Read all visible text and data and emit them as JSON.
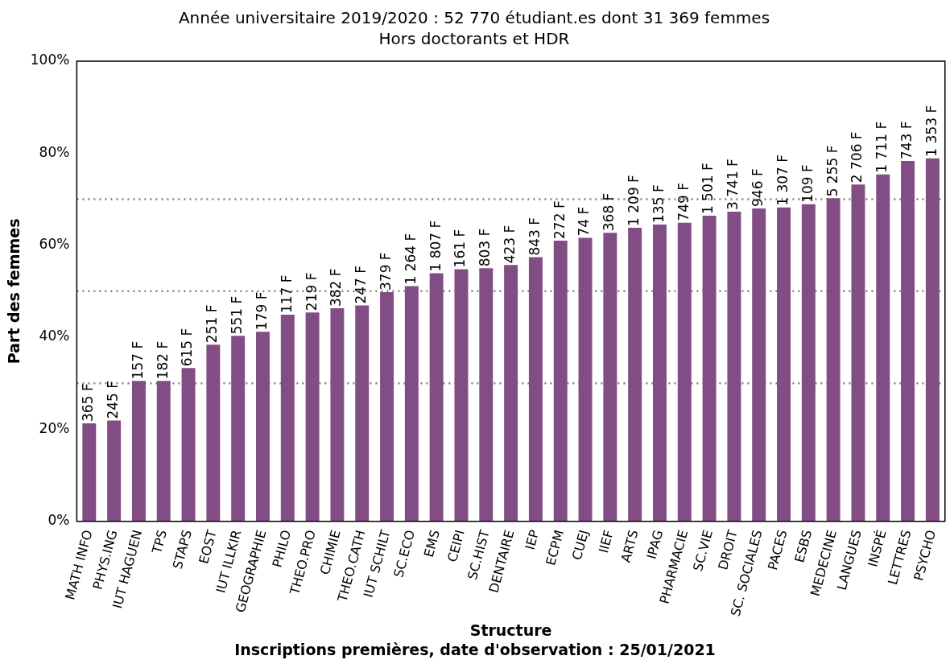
{
  "chart_data": {
    "type": "bar",
    "title": "Année universitaire 2019/2020 : 52 770 étudiant.es dont 31 369 femmes",
    "subtitle": "Hors doctorants et HDR",
    "xlabel": "Structure",
    "ylabel": "Part des femmes",
    "annotations": [
      "Inscriptions premières, date d'observation : 25/01/2021",
      {
        "text": "365 F",
        "x": "MATH INFO",
        "y": 21.3
      },
      {
        "text": "245 F",
        "x": "PHYS.ING",
        "y": 21.9
      },
      {
        "text": "157 F",
        "x": "IUT HAGUEN",
        "y": 30.5
      },
      {
        "text": "182 F",
        "x": "TPS",
        "y": 30.5
      },
      {
        "text": "615 F",
        "x": "STAPS",
        "y": 33.3
      },
      {
        "text": "251 F",
        "x": "EOST",
        "y": 38.4
      },
      {
        "text": "551 F",
        "x": "IUT ILLKIR",
        "y": 40.3
      },
      {
        "text": "179 F",
        "x": "GEOGRAPHIE",
        "y": 41.2
      },
      {
        "text": "117 F",
        "x": "PHILO",
        "y": 44.9
      },
      {
        "text": "219 F",
        "x": "THEO.PRO",
        "y": 45.4
      },
      {
        "text": "382 F",
        "x": "CHIMIE",
        "y": 46.3
      },
      {
        "text": "247 F",
        "x": "THEO.CATH",
        "y": 46.9
      },
      {
        "text": "379 F",
        "x": "IUT SCHILT",
        "y": 49.8
      },
      {
        "text": "1 264 F",
        "x": "SC.ECO",
        "y": 51.1
      },
      {
        "text": "1 807 F",
        "x": "EMS",
        "y": 53.9
      },
      {
        "text": "161 F",
        "x": "CEIPI",
        "y": 54.8
      },
      {
        "text": "803 F",
        "x": "SC.HIST",
        "y": 55.0
      },
      {
        "text": "423 F",
        "x": "DENTAIRE",
        "y": 55.7
      },
      {
        "text": "843 F",
        "x": "IEP",
        "y": 57.4
      },
      {
        "text": "272 F",
        "x": "ECPM",
        "y": 61.0
      },
      {
        "text": "74 F",
        "x": "CUEJ",
        "y": 61.6
      },
      {
        "text": "368 F",
        "x": "IIEF",
        "y": 62.7
      },
      {
        "text": "1 209 F",
        "x": "ARTS",
        "y": 63.8
      },
      {
        "text": "135 F",
        "x": "IPAG",
        "y": 64.5
      },
      {
        "text": "749 F",
        "x": "PHARMACIE",
        "y": 64.9
      },
      {
        "text": "1 501 F",
        "x": "SC.VIE",
        "y": 66.4
      },
      {
        "text": "3 741 F",
        "x": "DROIT",
        "y": 67.3
      },
      {
        "text": "946 F",
        "x": "SC. SOCIALES",
        "y": 68.0
      },
      {
        "text": "1 307 F",
        "x": "PACES",
        "y": 68.2
      },
      {
        "text": "109 F",
        "x": "ESBS",
        "y": 68.9
      },
      {
        "text": "5 255 F",
        "x": "MEDECINE",
        "y": 70.2
      },
      {
        "text": "2 706 F",
        "x": "LANGUES",
        "y": 73.2
      },
      {
        "text": "1 711 F",
        "x": "INSPÉ",
        "y": 75.4
      },
      {
        "text": "743 F",
        "x": "LETTRES",
        "y": 78.3
      },
      {
        "text": "1 353 F",
        "x": "PSYCHO",
        "y": 78.9
      }
    ],
    "categories": [
      "MATH INFO",
      "PHYS.ING",
      "IUT HAGUEN",
      "TPS",
      "STAPS",
      "EOST",
      "IUT ILLKIR",
      "GEOGRAPHIE",
      "PHILO",
      "THEO.PRO",
      "CHIMIE",
      "THEO.CATH",
      "IUT SCHILT",
      "SC.ECO",
      "EMS",
      "CEIPI",
      "SC.HIST",
      "DENTAIRE",
      "IEP",
      "ECPM",
      "CUEJ",
      "IIEF",
      "ARTS",
      "IPAG",
      "PHARMACIE",
      "SC.VIE",
      "DROIT",
      "SC. SOCIALES",
      "PACES",
      "ESBS",
      "MEDECINE",
      "LANGUES",
      "INSPÉ",
      "LETTRES",
      "PSYCHO"
    ],
    "values": [
      21.3,
      21.9,
      30.5,
      30.5,
      33.3,
      38.4,
      40.3,
      41.2,
      44.9,
      45.4,
      46.3,
      46.9,
      49.8,
      51.1,
      53.9,
      54.8,
      55.0,
      55.7,
      57.4,
      61.0,
      61.6,
      62.7,
      63.8,
      64.5,
      64.9,
      66.4,
      67.3,
      68.0,
      68.2,
      68.9,
      70.2,
      73.2,
      75.4,
      78.3,
      78.9
    ],
    "color": "#824d84",
    "ylim": [
      0,
      100
    ],
    "yticks": [
      {
        "value": 0,
        "label": "0%"
      },
      {
        "value": 20,
        "label": "20%"
      },
      {
        "value": 40,
        "label": "40%"
      },
      {
        "value": 60,
        "label": "60%"
      },
      {
        "value": 80,
        "label": "80%"
      },
      {
        "value": 100,
        "label": "100%"
      }
    ],
    "ref_lines": [
      {
        "axis": "y",
        "value": 30,
        "line_style": "dotted",
        "color": "#808080"
      },
      {
        "axis": "y",
        "value": 50,
        "line_style": "dotted",
        "color": "#808080"
      },
      {
        "axis": "y",
        "value": 70,
        "line_style": "dotted",
        "color": "#808080"
      }
    ],
    "grid": false,
    "legend": false
  }
}
